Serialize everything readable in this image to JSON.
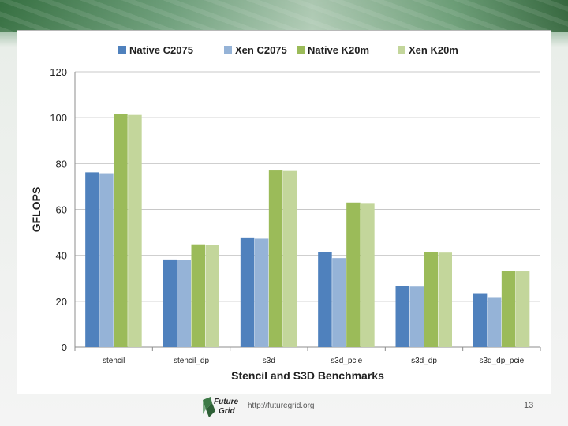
{
  "slide": {
    "url": "http://futuregrid.org",
    "page_number": "13",
    "logo_text": [
      "Future",
      "Grid"
    ]
  },
  "chart_data": {
    "type": "bar",
    "title": "",
    "xlabel": "Stencil and S3D Benchmarks",
    "ylabel": "GFLOPS",
    "ylim": [
      0,
      120
    ],
    "yticks": [
      0,
      20,
      40,
      60,
      80,
      100,
      120
    ],
    "grid": true,
    "legend_position": "top",
    "categories": [
      "stencil",
      "stencil_dp",
      "s3d",
      "s3d_pcie",
      "s3d_dp",
      "s3d_dp_pcie"
    ],
    "series": [
      {
        "name": "Native C2075",
        "color": "#4f81bd",
        "values": [
          76.2,
          38.2,
          47.5,
          41.5,
          26.5,
          23.2
        ]
      },
      {
        "name": "Xen C2075",
        "color": "#95b3d7",
        "values": [
          75.8,
          38.0,
          47.3,
          38.8,
          26.4,
          21.5
        ]
      },
      {
        "name": "Native K20m",
        "color": "#9bbb59",
        "values": [
          101.5,
          44.8,
          77.0,
          63.0,
          41.3,
          33.2
        ]
      },
      {
        "name": "Xen K20m",
        "color": "#c3d69b",
        "values": [
          101.2,
          44.5,
          76.8,
          62.8,
          41.2,
          33.0
        ]
      }
    ]
  }
}
